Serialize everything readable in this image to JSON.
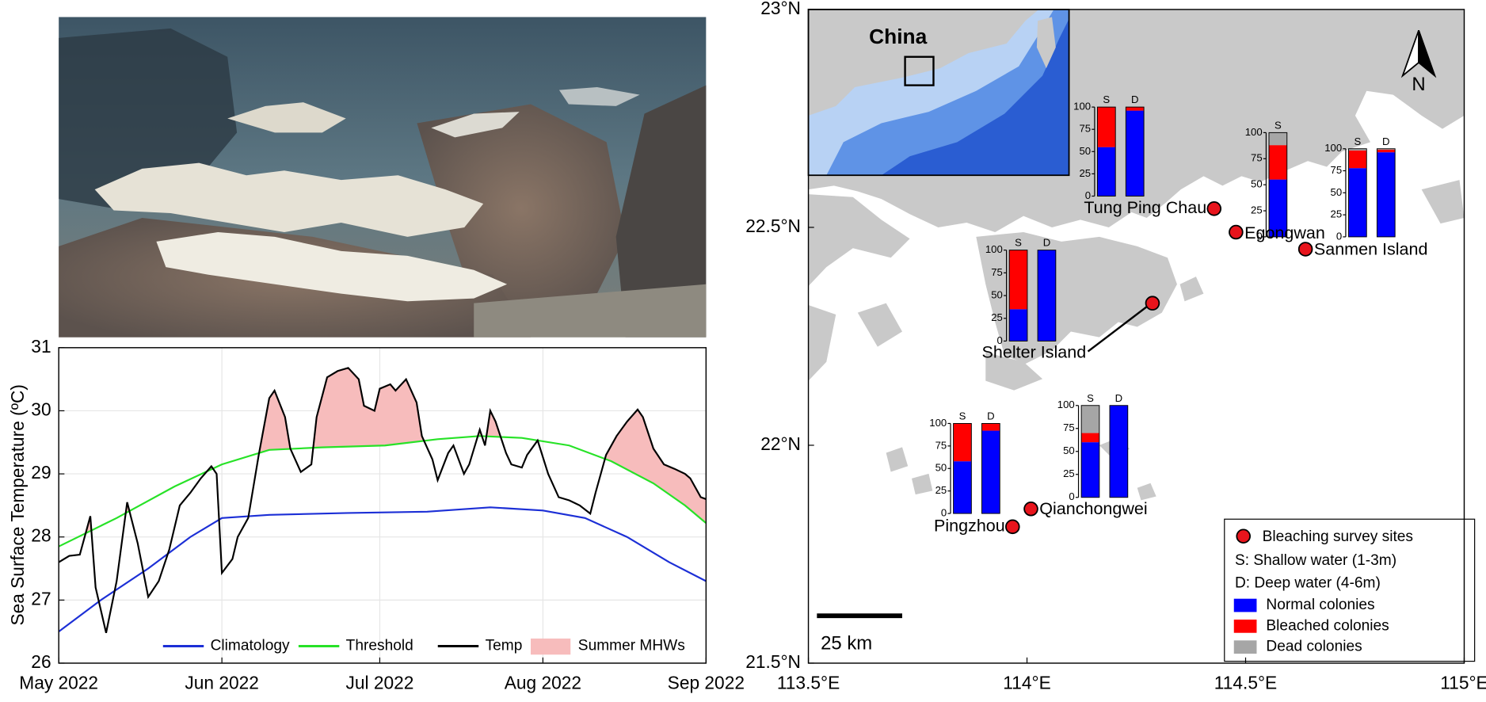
{
  "chart_data": [
    {
      "type": "line",
      "ylabel": "Sea Surface Temperature (ºC)",
      "xlim": [
        0,
        123
      ],
      "xticks": [
        {
          "value": 0,
          "label": "May 2022"
        },
        {
          "value": 31,
          "label": "Jun 2022"
        },
        {
          "value": 61,
          "label": "Jul 2022"
        },
        {
          "value": 92,
          "label": "Aug 2022"
        },
        {
          "value": 123,
          "label": "Sep 2022"
        }
      ],
      "ylim": [
        26,
        31
      ],
      "yticks": [
        26,
        27,
        28,
        29,
        30,
        31
      ],
      "grid": true,
      "series": [
        {
          "name": "Climatology",
          "color": "#1c2fd6",
          "x": [
            0,
            8,
            17,
            25,
            31,
            40,
            55,
            70,
            82,
            92,
            100,
            108,
            116,
            123
          ],
          "values": [
            26.5,
            27.0,
            27.5,
            28.0,
            28.3,
            28.35,
            28.38,
            28.4,
            28.47,
            28.42,
            28.3,
            28.0,
            27.6,
            27.3
          ]
        },
        {
          "name": "Threshold",
          "color": "#27e227",
          "x": [
            0,
            11,
            22,
            31,
            40,
            50,
            62,
            72,
            80,
            88,
            97,
            105,
            113,
            119,
            123
          ],
          "values": [
            27.85,
            28.3,
            28.8,
            29.15,
            29.38,
            29.42,
            29.45,
            29.55,
            29.6,
            29.57,
            29.45,
            29.2,
            28.85,
            28.5,
            28.22
          ]
        },
        {
          "name": "Temp",
          "color": "#000000",
          "x": [
            0,
            2,
            4,
            6,
            7,
            9,
            11,
            13,
            15,
            17,
            19,
            21,
            23,
            25,
            27,
            29,
            30,
            31,
            33,
            34,
            36,
            38,
            40,
            41,
            43,
            44,
            46,
            48,
            49,
            51,
            53,
            55,
            57,
            58,
            60,
            61,
            63,
            64,
            66,
            68,
            69,
            71,
            72,
            74,
            75,
            77,
            78,
            80,
            81,
            82,
            83,
            85,
            86,
            88,
            89,
            91,
            93,
            95,
            97,
            99,
            101,
            102,
            104,
            106,
            108,
            110,
            111,
            113,
            115,
            117,
            119,
            120,
            122,
            123
          ],
          "values": [
            27.6,
            27.7,
            27.72,
            28.33,
            27.2,
            26.48,
            27.3,
            28.55,
            27.9,
            27.05,
            27.3,
            27.8,
            28.5,
            28.7,
            28.93,
            29.12,
            29.0,
            27.43,
            27.65,
            28.0,
            28.3,
            29.3,
            30.2,
            30.32,
            29.9,
            29.4,
            29.03,
            29.15,
            29.9,
            30.53,
            30.63,
            30.68,
            30.5,
            30.08,
            30.0,
            30.35,
            30.42,
            30.32,
            30.5,
            30.13,
            29.6,
            29.23,
            28.9,
            29.33,
            29.45,
            29.0,
            29.15,
            29.7,
            29.45,
            30.0,
            29.83,
            29.33,
            29.15,
            29.1,
            29.3,
            29.53,
            29.0,
            28.63,
            28.58,
            28.5,
            28.37,
            28.7,
            29.3,
            29.6,
            29.83,
            30.02,
            29.9,
            29.4,
            29.15,
            29.08,
            29.0,
            28.93,
            28.63,
            28.6
          ]
        }
      ],
      "mhw_label": "Summer MHWs",
      "mhw_color": "#f7bcbc"
    },
    {
      "type": "map",
      "xlim": [
        113.5,
        115
      ],
      "xticks": [
        {
          "value": 113.5,
          "label": "113.5°E"
        },
        {
          "value": 114,
          "label": "114°E"
        },
        {
          "value": 114.5,
          "label": "114.5°E"
        },
        {
          "value": 115,
          "label": "115°E"
        }
      ],
      "ylim": [
        21.5,
        23
      ],
      "yticks": [
        {
          "value": 21.5,
          "label": "21.5°N"
        },
        {
          "value": 22,
          "label": "22°N"
        },
        {
          "value": 22.5,
          "label": "22.5°N"
        },
        {
          "value": 23,
          "label": "23°N"
        }
      ],
      "inset_label": "China",
      "north_label": "N",
      "scale_label": "25 km",
      "site_label": "Bleaching survey sites",
      "site_color": "#e8141c",
      "notes": [
        "S: Shallow water (1-3m)",
        "D: Deep water (4-6m)"
      ],
      "series": [
        {
          "name": "Normal colonies",
          "color": "#0000ff"
        },
        {
          "name": "Bleached colonies",
          "color": "#ff0000"
        },
        {
          "name": "Dead colonies",
          "color": "#a6a6a6"
        }
      ],
      "bar_ylim": [
        0,
        100
      ],
      "bar_yticks": [
        0,
        25,
        50,
        75,
        100
      ],
      "sites": [
        {
          "name": "Tung Ping Chau",
          "lon": 114.428,
          "lat": 22.543,
          "categories": [
            "S",
            "D"
          ],
          "values": [
            [
              55,
              45,
              0
            ],
            [
              96,
              4,
              0
            ]
          ]
        },
        {
          "name": "Egongwan",
          "lon": 114.478,
          "lat": 22.489,
          "categories": [
            "S"
          ],
          "values": [
            [
              55,
              33,
              12
            ]
          ]
        },
        {
          "name": "Sanmen Island",
          "lon": 114.637,
          "lat": 22.45,
          "categories": [
            "S",
            "D"
          ],
          "values": [
            [
              78,
              20,
              2
            ],
            [
              96,
              3,
              1
            ]
          ]
        },
        {
          "name": "Shelter Island",
          "lon": 114.287,
          "lat": 22.326,
          "categories": [
            "S",
            "D"
          ],
          "values": [
            [
              35,
              65,
              0
            ],
            [
              100,
              0,
              0
            ]
          ]
        },
        {
          "name": "Pingzhou",
          "lon": 113.967,
          "lat": 21.813,
          "categories": [
            "S",
            "D"
          ],
          "values": [
            [
              58,
              42,
              0
            ],
            [
              92,
              8,
              0
            ]
          ]
        },
        {
          "name": "Qianchongwei",
          "lon": 114.009,
          "lat": 21.854,
          "categories": [
            "S",
            "D"
          ],
          "values": [
            [
              60,
              10,
              30
            ],
            [
              100,
              0,
              0
            ]
          ]
        }
      ]
    }
  ]
}
